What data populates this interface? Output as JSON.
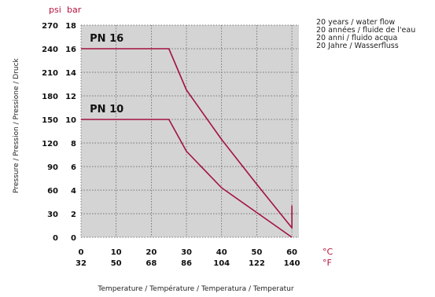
{
  "chart_data": {
    "type": "line",
    "y_units": {
      "left": "psi",
      "right": "bar"
    },
    "y_ticks": [
      {
        "bar": 0,
        "psi": 0
      },
      {
        "bar": 2,
        "psi": 30
      },
      {
        "bar": 4,
        "psi": 60
      },
      {
        "bar": 6,
        "psi": 90
      },
      {
        "bar": 8,
        "psi": 120
      },
      {
        "bar": 10,
        "psi": 150
      },
      {
        "bar": 12,
        "psi": 180
      },
      {
        "bar": 14,
        "psi": 210
      },
      {
        "bar": 16,
        "psi": 240
      },
      {
        "bar": 18,
        "psi": 270
      }
    ],
    "x_units": {
      "top": "°C",
      "bottom": "°F"
    },
    "x_ticks": [
      {
        "c": 0,
        "f": 32
      },
      {
        "c": 10,
        "f": 50
      },
      {
        "c": 20,
        "f": 68
      },
      {
        "c": 30,
        "f": 86
      },
      {
        "c": 40,
        "f": 104
      },
      {
        "c": 50,
        "f": 122
      },
      {
        "c": 60,
        "f": 140
      }
    ],
    "xlim": [
      0,
      62
    ],
    "ylim": [
      0,
      18
    ],
    "xlabel": "Temperature / Température / Temperatura / Temperatur",
    "ylabel": "Pressure / Pression / Pressione / Druck",
    "grid": true,
    "series": [
      {
        "name": "PN 16",
        "color": "#a31240",
        "points": [
          [
            0,
            16
          ],
          [
            25,
            16
          ],
          [
            30,
            12.5
          ],
          [
            40,
            8.3
          ],
          [
            50,
            4.5
          ],
          [
            60,
            0.8
          ],
          [
            60,
            2.7
          ]
        ]
      },
      {
        "name": "PN 10",
        "color": "#a31240",
        "points": [
          [
            0,
            10
          ],
          [
            25,
            10
          ],
          [
            30,
            7.3
          ],
          [
            40,
            4.2
          ],
          [
            50,
            2.1
          ],
          [
            60,
            0
          ]
        ]
      }
    ],
    "annotation": [
      "20 years / water flow",
      "20 années / fluide de l'eau",
      "20 anni / fluido acqua",
      "20 Jahre / Wasserfluss"
    ]
  }
}
